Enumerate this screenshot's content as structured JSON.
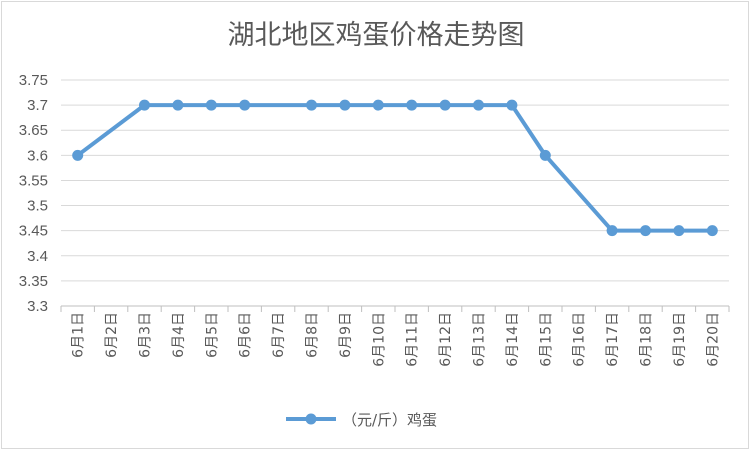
{
  "chart_data": {
    "type": "line",
    "title": "湖北地区鸡蛋价格走势图",
    "xlabel": "",
    "ylabel": "",
    "ylim": [
      3.3,
      3.75
    ],
    "yticks": [
      "3.3",
      "3.35",
      "3.4",
      "3.45",
      "3.5",
      "3.55",
      "3.6",
      "3.65",
      "3.7",
      "3.75"
    ],
    "grid": true,
    "legend_position": "bottom",
    "categories": [
      "6月1日",
      "6月2日",
      "6月3日",
      "6月4日",
      "6月5日",
      "6月6日",
      "6月7日",
      "6月8日",
      "6月9日",
      "6月10日",
      "6月11日",
      "6月12日",
      "6月13日",
      "6月14日",
      "6月15日",
      "6月16日",
      "6月17日",
      "6月18日",
      "6月19日",
      "6月20日"
    ],
    "series": [
      {
        "name": "（元/斤）鸡蛋",
        "color": "#5b9bd5",
        "values": [
          3.6,
          null,
          3.7,
          3.7,
          3.7,
          3.7,
          null,
          3.7,
          3.7,
          3.7,
          3.7,
          3.7,
          3.7,
          3.7,
          3.6,
          null,
          3.45,
          3.45,
          3.45,
          3.45
        ]
      }
    ]
  }
}
